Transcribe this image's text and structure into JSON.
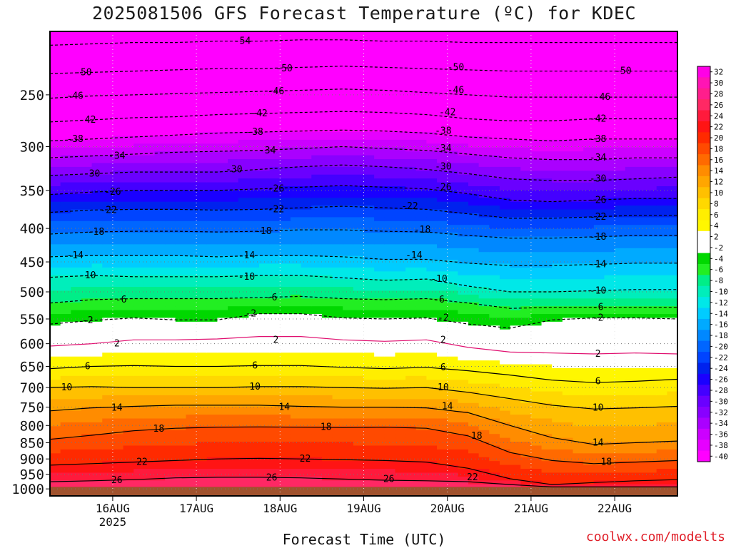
{
  "chart_data": {
    "type": "heatmap",
    "title": "2025081506 GFS Forecast Temperature (ºC) for KDEC",
    "xlabel": "Forecast Time (UTC)",
    "credit": "coolwx.com/modelts",
    "x_ticks": [
      {
        "label": "16AUG",
        "sublabel": "2025",
        "day": 16
      },
      {
        "label": "17AUG",
        "sublabel": "",
        "day": 17
      },
      {
        "label": "18AUG",
        "sublabel": "",
        "day": 18
      },
      {
        "label": "19AUG",
        "sublabel": "",
        "day": 19
      },
      {
        "label": "20AUG",
        "sublabel": "",
        "day": 20
      },
      {
        "label": "21AUG",
        "sublabel": "",
        "day": 21
      },
      {
        "label": "22AUG",
        "sublabel": "",
        "day": 22
      }
    ],
    "xlim_day": [
      15.25,
      22.75
    ],
    "y_ticks": [
      250,
      300,
      350,
      400,
      450,
      500,
      550,
      600,
      650,
      700,
      750,
      800,
      850,
      900,
      950,
      1000
    ],
    "ylim_hpa": [
      200,
      1025
    ],
    "y_scale": "log-pressure",
    "grid": true,
    "surface_pressure_hpa": 993,
    "colorbar": {
      "levels": [
        32,
        30,
        28,
        26,
        24,
        22,
        20,
        18,
        16,
        14,
        12,
        10,
        8,
        6,
        4,
        2,
        -2,
        -4,
        -6,
        -8,
        -10,
        -12,
        -14,
        -16,
        -18,
        -20,
        -22,
        -24,
        -26,
        -28,
        -30,
        -32,
        -34,
        -36,
        -38,
        -40
      ],
      "colors": [
        "#ff00e6",
        "#ff14b4",
        "#ff1e8c",
        "#ff2864",
        "#ff1a3c",
        "#ff1414",
        "#ff2a00",
        "#ff4a00",
        "#ff6a00",
        "#ff8c00",
        "#ffa600",
        "#ffc000",
        "#ffd800",
        "#ffee00",
        "#fff700",
        "#ffffff",
        "#ffffff",
        "#00d800",
        "#22ee22",
        "#00ee88",
        "#00eebb",
        "#00e8e8",
        "#00ccff",
        "#00aaff",
        "#0088ff",
        "#0066ff",
        "#0044ff",
        "#0022ee",
        "#1a00ff",
        "#4400ff",
        "#6a00ff",
        "#8800ff",
        "#aa00ff",
        "#cc00ff",
        "#e600ff",
        "#ff00ff"
      ],
      "label_step": 2
    },
    "isotherms": [
      {
        "temp": 26,
        "p": [
          975,
          972,
          968,
          962,
          960,
          960,
          962,
          966,
          970,
          972,
          975,
          985,
          993,
          993,
          993,
          993
        ]
      },
      {
        "temp": 22,
        "p": [
          920,
          915,
          910,
          905,
          900,
          898,
          900,
          902,
          905,
          910,
          930,
          965,
          985,
          978,
          972,
          968
        ]
      },
      {
        "temp": 18,
        "p": [
          840,
          828,
          815,
          808,
          805,
          804,
          805,
          806,
          805,
          808,
          830,
          880,
          905,
          915,
          910,
          905
        ]
      },
      {
        "temp": 14,
        "p": [
          760,
          752,
          748,
          745,
          745,
          745,
          748,
          750,
          750,
          752,
          765,
          800,
          835,
          855,
          850,
          845
        ]
      },
      {
        "temp": 10,
        "p": [
          700,
          698,
          700,
          700,
          700,
          698,
          698,
          700,
          702,
          700,
          712,
          728,
          745,
          755,
          752,
          748
        ]
      },
      {
        "temp": 6,
        "p": [
          655,
          650,
          648,
          650,
          650,
          648,
          648,
          652,
          655,
          652,
          660,
          670,
          682,
          688,
          685,
          680
        ]
      },
      {
        "temp": 2,
        "p": [
          605,
          600,
          592,
          592,
          590,
          585,
          585,
          592,
          595,
          592,
          608,
          618,
          620,
          622,
          620,
          622
        ]
      },
      {
        "temp": -2,
        "p": [
          560,
          553,
          548,
          552,
          552,
          540,
          540,
          548,
          550,
          548,
          560,
          568,
          552,
          548,
          548,
          550
        ]
      },
      {
        "temp": -6,
        "p": [
          520,
          514,
          512,
          512,
          512,
          510,
          508,
          512,
          514,
          512,
          520,
          530,
          528,
          528,
          528,
          528
        ]
      },
      {
        "temp": -10,
        "p": [
          475,
          472,
          474,
          474,
          474,
          472,
          472,
          476,
          480,
          478,
          490,
          500,
          500,
          498,
          496,
          496
        ]
      },
      {
        "temp": -14,
        "p": [
          442,
          440,
          440,
          440,
          442,
          440,
          440,
          442,
          446,
          446,
          452,
          456,
          456,
          454,
          452,
          452
        ]
      },
      {
        "temp": -18,
        "p": [
          408,
          405,
          404,
          404,
          405,
          404,
          402,
          402,
          404,
          405,
          410,
          414,
          414,
          412,
          410,
          410
        ]
      },
      {
        "temp": -22,
        "p": [
          378,
          375,
          374,
          374,
          375,
          374,
          372,
          370,
          372,
          374,
          380,
          386,
          386,
          384,
          382,
          382
        ]
      },
      {
        "temp": -26,
        "p": [
          355,
          352,
          350,
          350,
          350,
          348,
          346,
          344,
          346,
          348,
          354,
          362,
          364,
          362,
          360,
          360
        ]
      },
      {
        "temp": -30,
        "p": [
          332,
          330,
          328,
          328,
          328,
          325,
          322,
          320,
          322,
          325,
          330,
          336,
          338,
          338,
          336,
          334
        ]
      },
      {
        "temp": -34,
        "p": [
          312,
          310,
          308,
          306,
          305,
          304,
          302,
          300,
          302,
          304,
          308,
          312,
          314,
          314,
          312,
          312
        ]
      },
      {
        "temp": -38,
        "p": [
          294,
          292,
          290,
          288,
          286,
          285,
          284,
          283,
          284,
          286,
          290,
          292,
          294,
          292,
          292,
          292
        ]
      },
      {
        "temp": -42,
        "p": [
          275,
          273,
          271,
          270,
          268,
          267,
          266,
          265,
          266,
          268,
          272,
          274,
          274,
          272,
          272,
          272
        ]
      },
      {
        "temp": -46,
        "p": [
          253,
          251,
          250,
          249,
          248,
          247,
          246,
          245,
          246,
          248,
          250,
          252,
          252,
          252,
          252,
          252
        ]
      },
      {
        "temp": -50,
        "p": [
          232,
          231,
          230,
          229,
          228,
          228,
          227,
          226,
          227,
          228,
          229,
          230,
          230,
          230,
          230,
          230
        ]
      },
      {
        "temp": -54,
        "p": [
          210,
          209,
          208,
          208,
          207,
          207,
          206,
          206,
          207,
          207,
          208,
          208,
          208,
          208,
          208,
          208
        ]
      }
    ],
    "contour_labels": [
      {
        "text": "-54",
        "day": 17.55,
        "hpa": 207
      },
      {
        "text": "-50",
        "day": 15.65,
        "hpa": 231
      },
      {
        "text": "-50",
        "day": 18.05,
        "hpa": 228
      },
      {
        "text": "-50",
        "day": 20.1,
        "hpa": 227
      },
      {
        "text": "-50",
        "day": 22.1,
        "hpa": 230
      },
      {
        "text": "-46",
        "day": 15.55,
        "hpa": 251
      },
      {
        "text": "-46",
        "day": 17.95,
        "hpa": 247
      },
      {
        "text": "-46",
        "day": 20.1,
        "hpa": 246
      },
      {
        "text": "-46",
        "day": 21.85,
        "hpa": 252
      },
      {
        "text": "-42",
        "day": 15.7,
        "hpa": 273
      },
      {
        "text": "-42",
        "day": 17.75,
        "hpa": 267
      },
      {
        "text": "-42",
        "day": 20.0,
        "hpa": 266
      },
      {
        "text": "-42",
        "day": 21.8,
        "hpa": 272
      },
      {
        "text": "-38",
        "day": 15.55,
        "hpa": 292
      },
      {
        "text": "-38",
        "day": 17.7,
        "hpa": 285
      },
      {
        "text": "-38",
        "day": 19.95,
        "hpa": 284
      },
      {
        "text": "-38",
        "day": 21.8,
        "hpa": 292
      },
      {
        "text": "-34",
        "day": 16.05,
        "hpa": 310
      },
      {
        "text": "-34",
        "day": 17.85,
        "hpa": 304
      },
      {
        "text": "-34",
        "day": 19.95,
        "hpa": 302
      },
      {
        "text": "-34",
        "day": 21.8,
        "hpa": 312
      },
      {
        "text": "-30",
        "day": 15.75,
        "hpa": 330
      },
      {
        "text": "-30",
        "day": 17.45,
        "hpa": 325
      },
      {
        "text": "-30",
        "day": 19.95,
        "hpa": 322
      },
      {
        "text": "-30",
        "day": 21.8,
        "hpa": 336
      },
      {
        "text": "-26",
        "day": 16.0,
        "hpa": 352
      },
      {
        "text": "-26",
        "day": 17.95,
        "hpa": 348
      },
      {
        "text": "-26",
        "day": 19.95,
        "hpa": 346
      },
      {
        "text": "-26",
        "day": 21.8,
        "hpa": 362
      },
      {
        "text": "-22",
        "day": 15.95,
        "hpa": 375
      },
      {
        "text": "-22",
        "day": 17.95,
        "hpa": 374
      },
      {
        "text": "-22",
        "day": 19.55,
        "hpa": 370
      },
      {
        "text": "-22",
        "day": 21.8,
        "hpa": 384
      },
      {
        "text": "-18",
        "day": 15.8,
        "hpa": 405
      },
      {
        "text": "-18",
        "day": 17.8,
        "hpa": 404
      },
      {
        "text": "-18",
        "day": 19.7,
        "hpa": 402
      },
      {
        "text": "-18",
        "day": 21.8,
        "hpa": 412
      },
      {
        "text": "-14",
        "day": 15.55,
        "hpa": 440
      },
      {
        "text": "-14",
        "day": 17.6,
        "hpa": 440
      },
      {
        "text": "-14",
        "day": 19.6,
        "hpa": 440
      },
      {
        "text": "-14",
        "day": 21.8,
        "hpa": 454
      },
      {
        "text": "-10",
        "day": 15.7,
        "hpa": 472
      },
      {
        "text": "-10",
        "day": 17.6,
        "hpa": 474
      },
      {
        "text": "-10",
        "day": 19.9,
        "hpa": 478
      },
      {
        "text": "-10",
        "day": 21.8,
        "hpa": 498
      },
      {
        "text": "-6",
        "day": 16.1,
        "hpa": 514
      },
      {
        "text": "-6",
        "day": 17.9,
        "hpa": 510
      },
      {
        "text": "-6",
        "day": 19.9,
        "hpa": 514
      },
      {
        "text": "-6",
        "day": 21.8,
        "hpa": 528
      },
      {
        "text": "-2",
        "day": 15.7,
        "hpa": 553
      },
      {
        "text": "-2",
        "day": 17.65,
        "hpa": 540
      },
      {
        "text": "-2",
        "day": 19.95,
        "hpa": 548
      },
      {
        "text": "-2",
        "day": 21.8,
        "hpa": 548
      },
      {
        "text": "2",
        "day": 16.05,
        "hpa": 600
      },
      {
        "text": "2",
        "day": 17.95,
        "hpa": 592
      },
      {
        "text": "2",
        "day": 19.95,
        "hpa": 592
      },
      {
        "text": "2",
        "day": 21.8,
        "hpa": 622
      },
      {
        "text": "6",
        "day": 15.7,
        "hpa": 650
      },
      {
        "text": "6",
        "day": 17.7,
        "hpa": 648
      },
      {
        "text": "6",
        "day": 19.95,
        "hpa": 652
      },
      {
        "text": "6",
        "day": 21.8,
        "hpa": 685
      },
      {
        "text": "10",
        "day": 15.45,
        "hpa": 700
      },
      {
        "text": "10",
        "day": 17.7,
        "hpa": 698
      },
      {
        "text": "10",
        "day": 19.95,
        "hpa": 700
      },
      {
        "text": "10",
        "day": 21.8,
        "hpa": 752
      },
      {
        "text": "14",
        "day": 16.05,
        "hpa": 752
      },
      {
        "text": "14",
        "day": 18.05,
        "hpa": 750
      },
      {
        "text": "14",
        "day": 20.0,
        "hpa": 748
      },
      {
        "text": "14",
        "day": 21.8,
        "hpa": 850
      },
      {
        "text": "18",
        "day": 16.55,
        "hpa": 810
      },
      {
        "text": "18",
        "day": 18.55,
        "hpa": 805
      },
      {
        "text": "18",
        "day": 20.35,
        "hpa": 830
      },
      {
        "text": "18",
        "day": 21.9,
        "hpa": 910
      },
      {
        "text": "22",
        "day": 16.35,
        "hpa": 910
      },
      {
        "text": "22",
        "day": 18.3,
        "hpa": 900
      },
      {
        "text": "22",
        "day": 20.3,
        "hpa": 960
      },
      {
        "text": "26",
        "day": 16.05,
        "hpa": 970
      },
      {
        "text": "26",
        "day": 17.9,
        "hpa": 962
      },
      {
        "text": "26",
        "day": 19.3,
        "hpa": 966
      }
    ]
  }
}
